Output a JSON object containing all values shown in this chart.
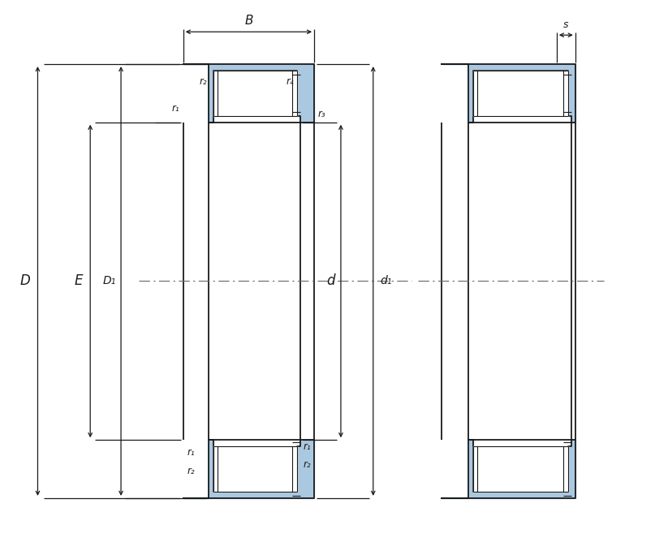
{
  "bg_color": "#ffffff",
  "line_color": "#1a1a1a",
  "fill_color": "#aac8e0",
  "fig_width": 8.07,
  "fig_height": 6.84,
  "dpi": 100,
  "annotations": {
    "B_label": "B",
    "s_label": "s",
    "D_label": "D",
    "E_label": "E",
    "D1_label": "D₁",
    "d_label": "d",
    "d1_label": "d₁",
    "r1_label": "r₁",
    "r2_label": "r₂",
    "r3_label": "r₃",
    "r4_label": "r₄"
  }
}
